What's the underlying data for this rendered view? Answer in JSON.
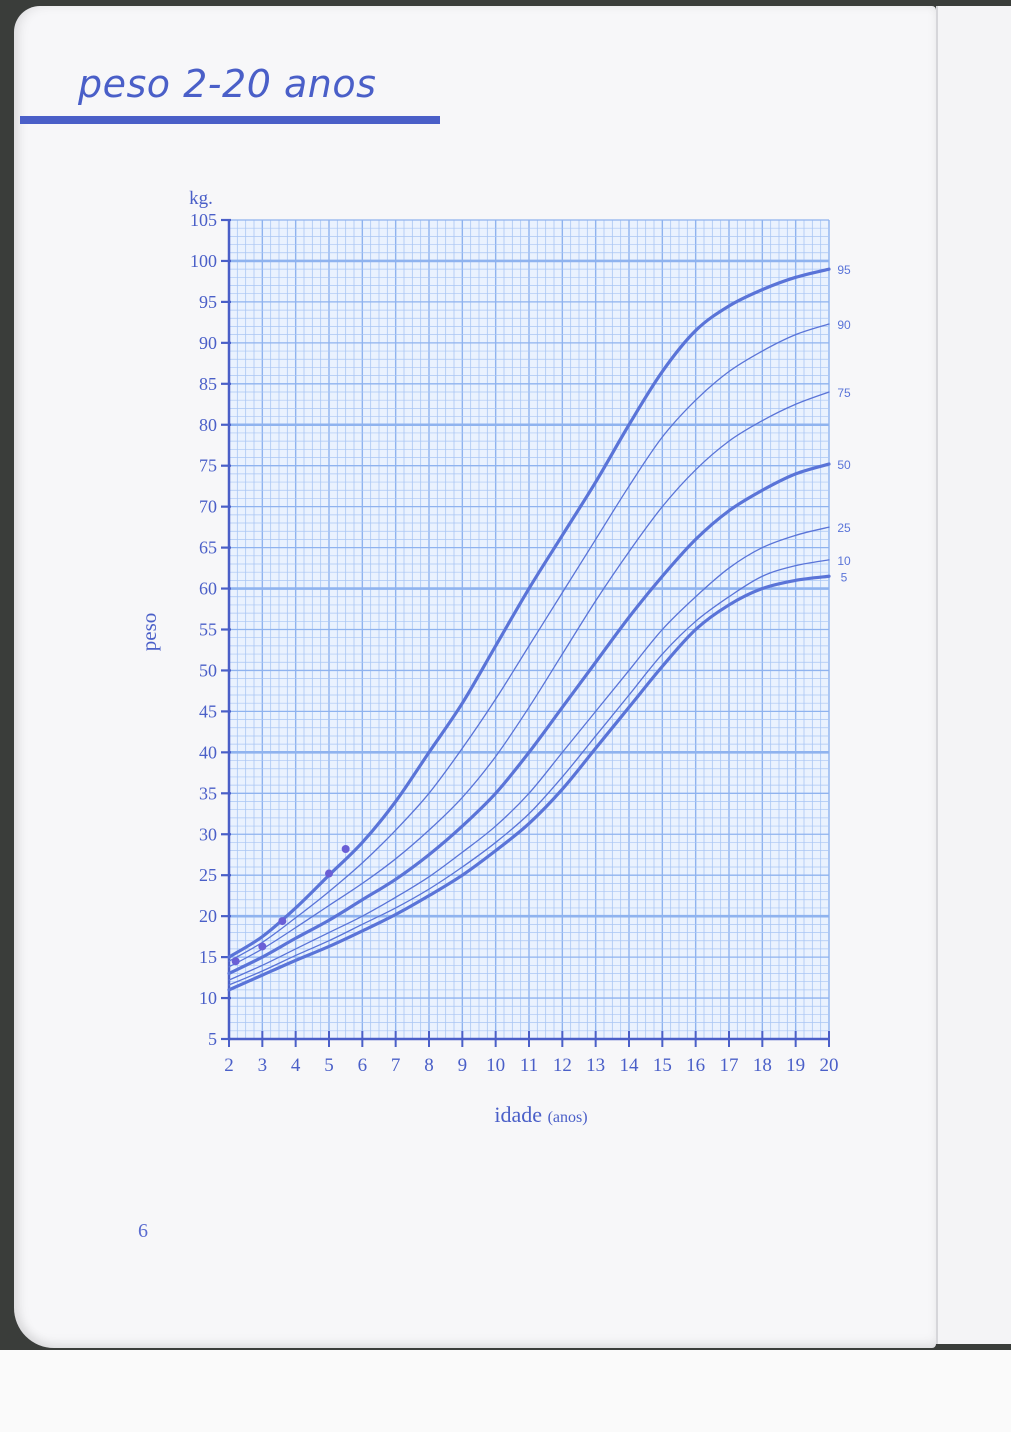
{
  "page": {
    "title": "peso 2-20 anos",
    "page_number": "6"
  },
  "colors": {
    "accent": "#4a5fc8",
    "grid_minor": "#a9c6f4",
    "grid_major": "#8fb3ef",
    "curve": "#5a74d8",
    "paper": "#f7f7f9"
  },
  "chart_data": {
    "type": "line",
    "title": "peso 2-20 anos",
    "xlabel": "idade",
    "xlabel_unit": "(anos)",
    "ylabel": "peso",
    "yunit_label": "kg.",
    "xlim": [
      2,
      20
    ],
    "ylim": [
      5,
      105
    ],
    "grid": true,
    "x_ticks": [
      2,
      3,
      4,
      5,
      6,
      7,
      8,
      9,
      10,
      11,
      12,
      13,
      14,
      15,
      16,
      17,
      18,
      19,
      20
    ],
    "y_ticks": [
      5,
      10,
      15,
      20,
      25,
      30,
      35,
      40,
      45,
      50,
      55,
      60,
      65,
      70,
      75,
      80,
      85,
      90,
      95,
      100,
      105
    ],
    "x": [
      2,
      3,
      4,
      5,
      6,
      7,
      8,
      9,
      10,
      11,
      12,
      13,
      14,
      15,
      16,
      17,
      18,
      19,
      20
    ],
    "series": [
      {
        "name": "95",
        "bold": true,
        "values": [
          15,
          17.5,
          21,
          25,
          29,
          34,
          40,
          46,
          53,
          60,
          66.5,
          73,
          80,
          86.5,
          91.5,
          94.5,
          96.5,
          98,
          99
        ]
      },
      {
        "name": "90",
        "bold": false,
        "values": [
          14.5,
          16.8,
          19.8,
          23,
          26.5,
          30.5,
          35,
          40.5,
          46.5,
          53,
          59.5,
          66,
          72.5,
          78.5,
          83,
          86.5,
          89,
          91,
          92.3
        ]
      },
      {
        "name": "75",
        "bold": false,
        "values": [
          13.8,
          16,
          18.6,
          21.3,
          24,
          27,
          30.5,
          34.5,
          39.5,
          45.5,
          52,
          58.5,
          64.5,
          70,
          74.5,
          78,
          80.5,
          82.5,
          84
        ]
      },
      {
        "name": "50",
        "bold": true,
        "values": [
          13,
          15,
          17.3,
          19.5,
          22,
          24.5,
          27.5,
          31,
          35,
          40,
          45.5,
          51,
          56.5,
          61.5,
          66,
          69.5,
          72,
          74,
          75.2
        ]
      },
      {
        "name": "25",
        "bold": false,
        "values": [
          12.2,
          14,
          16,
          18,
          20,
          22.3,
          24.8,
          27.8,
          31,
          35,
          40,
          45,
          50,
          55,
          59,
          62.5,
          65,
          66.5,
          67.5
        ]
      },
      {
        "name": "10",
        "bold": false,
        "values": [
          11.6,
          13.3,
          15.2,
          17,
          19,
          21,
          23.3,
          26,
          29,
          32.5,
          37,
          42,
          47,
          52,
          56,
          59,
          61.5,
          62.8,
          63.5
        ]
      },
      {
        "name": "5",
        "bold": true,
        "values": [
          11,
          12.8,
          14.6,
          16.3,
          18.2,
          20.2,
          22.5,
          25,
          28,
          31.3,
          35.5,
          40.5,
          45.5,
          50.5,
          55,
          58,
          60,
          61,
          61.5
        ]
      }
    ],
    "curve_labels": [
      "95",
      "90",
      "75",
      "50",
      "25",
      "10",
      "5"
    ],
    "measurements": [
      {
        "x": 2.2,
        "y": 14.5
      },
      {
        "x": 3,
        "y": 16.3
      },
      {
        "x": 3.6,
        "y": 19.4
      },
      {
        "x": 5,
        "y": 25.2
      },
      {
        "x": 5.5,
        "y": 28.2
      }
    ]
  }
}
